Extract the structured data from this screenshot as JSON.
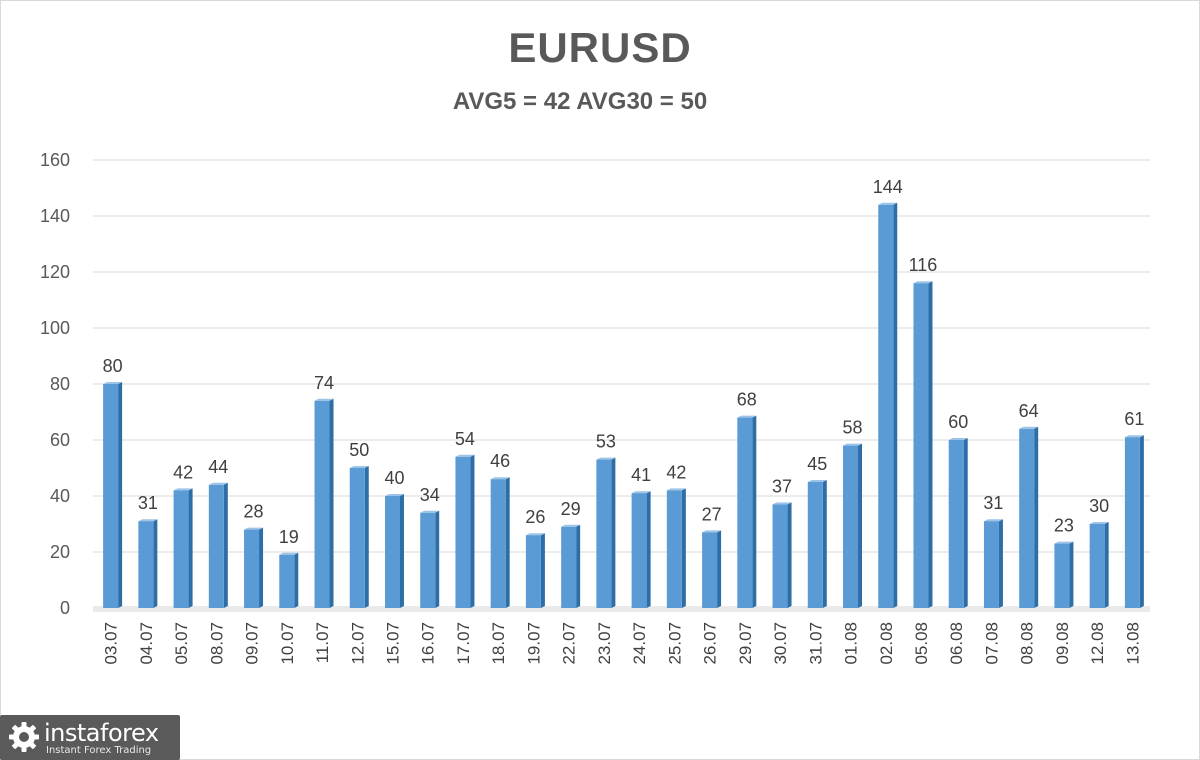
{
  "chart_data": {
    "type": "bar",
    "title": "EURUSD",
    "subtitle": "AVG5 = 42 AVG30 = 50",
    "xlabel": "",
    "ylabel": "",
    "ylim": [
      0,
      160
    ],
    "yticks": [
      0,
      20,
      40,
      60,
      80,
      100,
      120,
      140,
      160
    ],
    "grid": true,
    "legend": "none",
    "categories": [
      "03.07",
      "04.07",
      "05.07",
      "08.07",
      "09.07",
      "10.07",
      "11.07",
      "12.07",
      "15.07",
      "16.07",
      "17.07",
      "18.07",
      "19.07",
      "22.07",
      "23.07",
      "24.07",
      "25.07",
      "26.07",
      "29.07",
      "30.07",
      "31.07",
      "01.08",
      "02.08",
      "05.08",
      "06.08",
      "07.08",
      "08.08",
      "09.08",
      "12.08",
      "13.08"
    ],
    "values": [
      80,
      31,
      42,
      44,
      28,
      19,
      74,
      50,
      40,
      34,
      54,
      46,
      26,
      29,
      53,
      41,
      42,
      27,
      68,
      37,
      45,
      58,
      144,
      116,
      60,
      31,
      64,
      23,
      30,
      61
    ],
    "bar_color": "#5b9bd5",
    "bar_side_color": "#2e6ea6"
  },
  "logo": {
    "name": "instaforex",
    "tagline": "Instant Forex Trading",
    "icon": "gear-icon"
  }
}
